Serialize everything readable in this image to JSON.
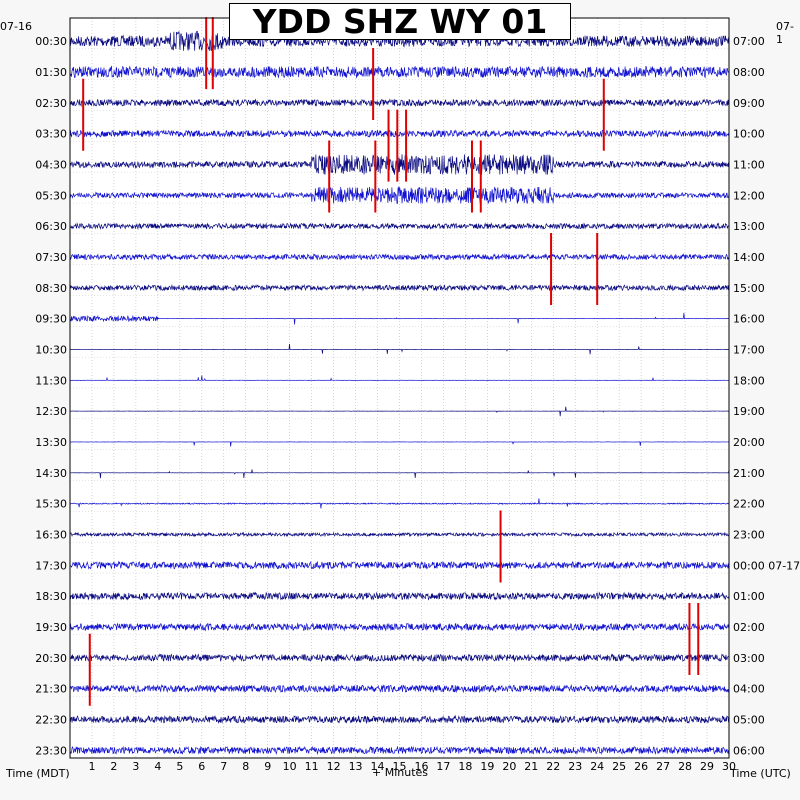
{
  "chart_data": {
    "type": "helicorder",
    "title": "YDD SHZ WY 01",
    "date_left": "07-16",
    "date_right": "07-1",
    "date_right_midnight": "07-17",
    "xlabel": "+ Minutes",
    "left_axis_label": "Time (MDT)",
    "right_axis_label": "Time (UTC)",
    "x_ticks": [
      "1",
      "2",
      "3",
      "4",
      "5",
      "6",
      "7",
      "8",
      "9",
      "10",
      "11",
      "12",
      "13",
      "14",
      "15",
      "16",
      "17",
      "18",
      "19",
      "20",
      "21",
      "22",
      "23",
      "24",
      "25",
      "26",
      "27",
      "28",
      "29",
      "30"
    ],
    "xlim": [
      0,
      30
    ],
    "rows_mdt": [
      "00:30",
      "01:30",
      "02:30",
      "03:30",
      "04:30",
      "05:30",
      "06:30",
      "07:30",
      "08:30",
      "09:30",
      "10:30",
      "11:30",
      "12:30",
      "13:30",
      "14:30",
      "15:30",
      "16:30",
      "17:30",
      "18:30",
      "19:30",
      "20:30",
      "21:30",
      "22:30",
      "23:30"
    ],
    "rows_utc": [
      "07:00",
      "08:00",
      "09:00",
      "10:00",
      "11:00",
      "12:00",
      "13:00",
      "14:00",
      "15:00",
      "16:00",
      "17:00",
      "18:00",
      "19:00",
      "20:00",
      "21:00",
      "22:00",
      "23:00",
      "00:00",
      "01:00",
      "02:00",
      "03:00",
      "04:00",
      "05:00",
      "06:00"
    ],
    "trace_colors": [
      "#0a0a80",
      "#1010d0"
    ],
    "clip_color": "#e00000",
    "grid": true,
    "clipped_events_minutes": [
      {
        "row": 0,
        "minute": 6.2
      },
      {
        "row": 0,
        "minute": 6.5
      },
      {
        "row": 1,
        "minute": 13.8
      },
      {
        "row": 2,
        "minute": 0.6
      },
      {
        "row": 2,
        "minute": 24.3
      },
      {
        "row": 3,
        "minute": 14.5
      },
      {
        "row": 3,
        "minute": 14.9
      },
      {
        "row": 3,
        "minute": 15.3
      },
      {
        "row": 4,
        "minute": 11.8
      },
      {
        "row": 4,
        "minute": 13.9
      },
      {
        "row": 4,
        "minute": 18.3
      },
      {
        "row": 4,
        "minute": 18.7
      },
      {
        "row": 7,
        "minute": 21.9
      },
      {
        "row": 7,
        "minute": 24.0
      },
      {
        "row": 16,
        "minute": 19.6
      },
      {
        "row": 19,
        "minute": 28.2
      },
      {
        "row": 19,
        "minute": 28.6
      },
      {
        "row": 20,
        "minute": 0.9
      }
    ]
  }
}
